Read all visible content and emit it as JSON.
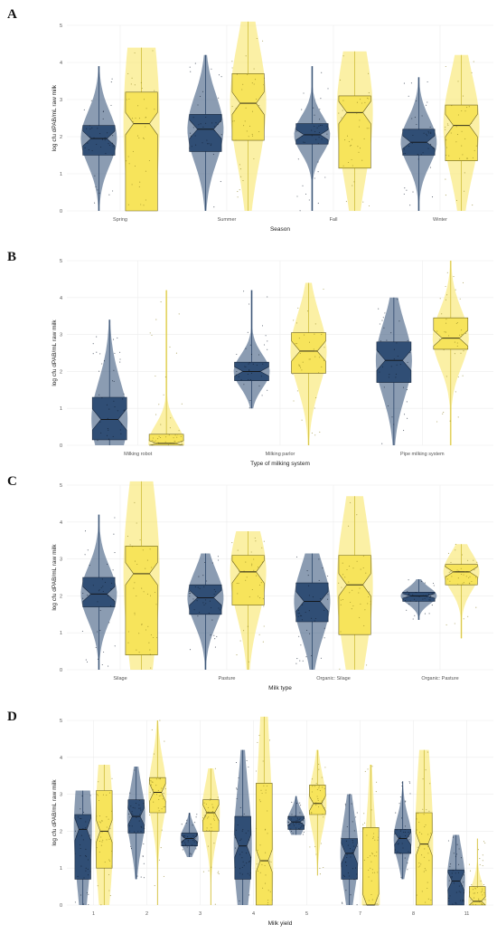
{
  "colors": {
    "navy": "#2b4a72",
    "navy_dark": "#1f3a5f",
    "yellow": "#f7e45b",
    "yellow_dark": "#c9b62c",
    "grid": "#ececec"
  },
  "chart_data": [
    {
      "panel": "A",
      "type": "box",
      "xlabel": "Season",
      "ylabel": "log cfu dPAB/mL raw milk",
      "ylim": [
        0,
        5
      ],
      "yticks": [
        "0",
        "1",
        "2",
        "3",
        "4",
        "5"
      ],
      "categories": [
        "Spring",
        "Summer",
        "Fall",
        "Winter"
      ],
      "series": [
        {
          "color": "navy",
          "min": [
            0,
            0,
            0,
            0
          ],
          "q1": [
            1.5,
            1.6,
            1.8,
            1.5
          ],
          "median": [
            1.95,
            2.2,
            2.05,
            1.85
          ],
          "q3": [
            2.3,
            2.6,
            2.35,
            2.2
          ],
          "max": [
            3.9,
            4.2,
            3.9,
            3.6
          ]
        },
        {
          "color": "yellow",
          "min": [
            0,
            0,
            0,
            0
          ],
          "q1": [
            0,
            1.9,
            1.15,
            1.35
          ],
          "median": [
            2.35,
            2.9,
            2.65,
            2.3
          ],
          "q3": [
            3.2,
            3.7,
            3.1,
            2.85
          ],
          "max": [
            4.4,
            5.1,
            4.3,
            4.2
          ]
        }
      ]
    },
    {
      "panel": "B",
      "type": "box",
      "xlabel": "Type of milking system",
      "ylabel": "log cfu dPAB/mL raw milk",
      "ylim": [
        0,
        5
      ],
      "yticks": [
        "0",
        "1",
        "2",
        "3",
        "4",
        "5"
      ],
      "categories": [
        "Milking robot",
        "Milking parlor",
        "Pipe milking system"
      ],
      "series": [
        {
          "color": "navy",
          "min": [
            0,
            1.0,
            0
          ],
          "q1": [
            0.15,
            1.75,
            1.7
          ],
          "median": [
            0.7,
            2.0,
            2.3
          ],
          "q3": [
            1.3,
            2.25,
            2.8
          ],
          "max": [
            3.4,
            4.2,
            4.0
          ]
        },
        {
          "color": "yellow",
          "min": [
            0,
            0,
            0
          ],
          "q1": [
            0,
            1.95,
            2.6
          ],
          "median": [
            0.05,
            2.55,
            2.9
          ],
          "q3": [
            0.3,
            3.05,
            3.45
          ],
          "max": [
            4.2,
            4.4,
            5.0
          ]
        }
      ]
    },
    {
      "panel": "C",
      "type": "box",
      "xlabel": "Milk type",
      "ylabel": "log cfu dPAB/mL raw milk",
      "ylim": [
        0,
        5
      ],
      "yticks": [
        "0",
        "1",
        "2",
        "3",
        "4",
        "5"
      ],
      "categories": [
        "Silage",
        "Pasture",
        "Organic: Silage",
        "Organic: Pasture"
      ],
      "series": [
        {
          "color": "navy",
          "min": [
            0,
            0,
            0,
            1.35
          ],
          "q1": [
            1.7,
            1.5,
            1.3,
            1.85
          ],
          "median": [
            2.05,
            1.95,
            1.85,
            2.0
          ],
          "q3": [
            2.5,
            2.3,
            2.35,
            2.1
          ],
          "max": [
            4.2,
            3.15,
            3.15,
            2.45
          ]
        },
        {
          "color": "yellow",
          "min": [
            0,
            0,
            0,
            0.85
          ],
          "q1": [
            0.4,
            1.75,
            0.95,
            2.3
          ],
          "median": [
            2.6,
            2.65,
            2.3,
            2.65
          ],
          "q3": [
            3.35,
            3.1,
            3.1,
            2.85
          ],
          "max": [
            5.1,
            3.75,
            4.7,
            3.4
          ]
        }
      ]
    },
    {
      "panel": "D",
      "type": "box",
      "xlabel": "Milk yield",
      "ylabel": "log cfu dPAB/mL raw milk",
      "ylim": [
        0,
        5
      ],
      "yticks": [
        "0",
        "1",
        "2",
        "3",
        "4",
        "5"
      ],
      "categories": [
        "1",
        "2",
        "3",
        "4",
        "5",
        "7",
        "8",
        "11"
      ],
      "series": [
        {
          "color": "navy",
          "min": [
            0,
            0.7,
            1.3,
            0,
            1.9,
            0,
            0.7,
            0
          ],
          "q1": [
            0.7,
            1.95,
            1.6,
            0.7,
            2.05,
            0.7,
            1.4,
            0
          ],
          "median": [
            2.05,
            2.4,
            1.8,
            1.6,
            2.25,
            1.4,
            1.8,
            0.65
          ],
          "q3": [
            2.45,
            2.85,
            1.95,
            2.4,
            2.4,
            1.8,
            2.05,
            0.95
          ],
          "max": [
            3.1,
            3.75,
            2.5,
            4.2,
            2.95,
            3.0,
            3.35,
            1.9
          ]
        },
        {
          "color": "yellow",
          "min": [
            0,
            0,
            0,
            0,
            0.8,
            0,
            0,
            0
          ],
          "q1": [
            1.0,
            2.5,
            2.0,
            0,
            2.45,
            0,
            0,
            0
          ],
          "median": [
            2.0,
            3.05,
            2.5,
            1.2,
            2.75,
            0,
            1.65,
            0.1
          ],
          "q3": [
            3.1,
            3.45,
            2.85,
            3.3,
            3.25,
            2.1,
            2.5,
            0.5
          ],
          "max": [
            3.8,
            5.0,
            3.7,
            5.1,
            4.2,
            3.8,
            4.2,
            1.8
          ]
        }
      ]
    }
  ]
}
